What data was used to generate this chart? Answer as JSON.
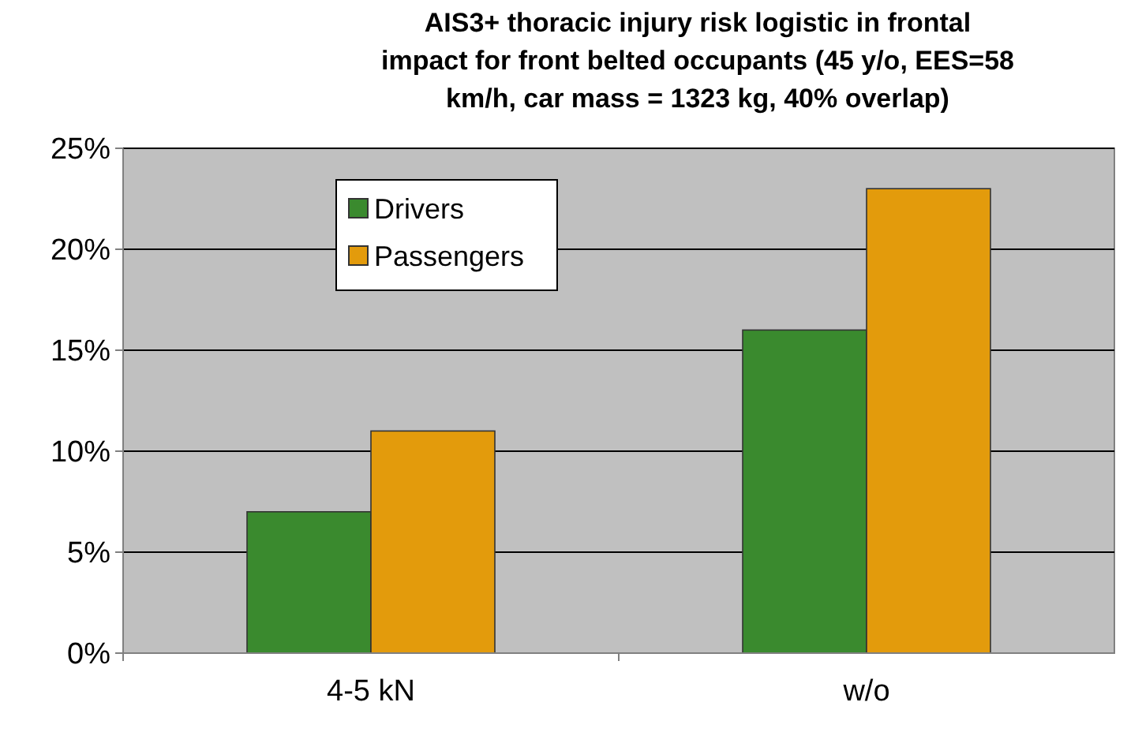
{
  "chart_data": {
    "type": "bar",
    "title": "AIS3+ thoracic injury risk logistic in frontal impact for front belted occupants (45 y/o, EES=58 km/h, car mass = 1323 kg, 40% overlap)",
    "categories": [
      "4-5 kN",
      "w/o"
    ],
    "series": [
      {
        "name": "Drivers",
        "color": "#3a8a2e",
        "values": [
          7,
          16
        ]
      },
      {
        "name": "Passengers",
        "color": "#e39b0c",
        "values": [
          11,
          23
        ]
      }
    ],
    "ylim": [
      0,
      25
    ],
    "yticks": [
      {
        "value": 0,
        "label": "0%"
      },
      {
        "value": 5,
        "label": "5%"
      },
      {
        "value": 10,
        "label": "10%"
      },
      {
        "value": 15,
        "label": "15%"
      },
      {
        "value": 20,
        "label": "20%"
      },
      {
        "value": 25,
        "label": "25%"
      }
    ],
    "grid": "y",
    "legend": "top left"
  }
}
